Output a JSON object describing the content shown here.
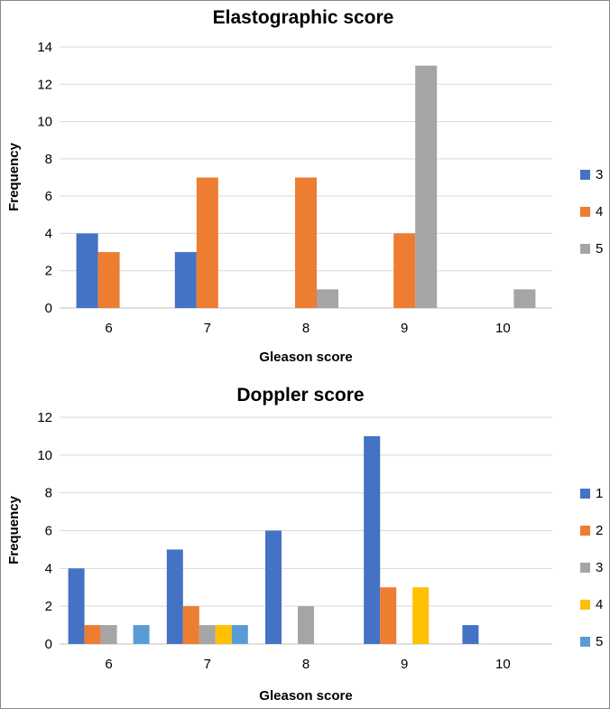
{
  "chart_data": [
    {
      "type": "bar",
      "title": "Elastographic score",
      "xlabel": "Gleason score",
      "ylabel": "Frequency",
      "categories": [
        "6",
        "7",
        "8",
        "9",
        "10"
      ],
      "ylim": [
        0,
        14
      ],
      "ytick_step": 2,
      "grid": true,
      "legend": "right",
      "series": [
        {
          "name": "3",
          "color": "#4472C4",
          "values": [
            4,
            3,
            0,
            0,
            0
          ]
        },
        {
          "name": "4",
          "color": "#ED7D31",
          "values": [
            3,
            7,
            7,
            4,
            0
          ]
        },
        {
          "name": "5",
          "color": "#A5A5A5",
          "values": [
            0,
            0,
            1,
            13,
            1
          ]
        }
      ]
    },
    {
      "type": "bar",
      "title": "Doppler score",
      "xlabel": "Gleason score",
      "ylabel": "Frequency",
      "categories": [
        "6",
        "7",
        "8",
        "9",
        "10"
      ],
      "ylim": [
        0,
        12
      ],
      "ytick_step": 2,
      "grid": true,
      "legend": "right",
      "series": [
        {
          "name": "1",
          "color": "#4472C4",
          "values": [
            4,
            5,
            6,
            11,
            1
          ]
        },
        {
          "name": "2",
          "color": "#ED7D31",
          "values": [
            1,
            2,
            0,
            3,
            0
          ]
        },
        {
          "name": "3",
          "color": "#A5A5A5",
          "values": [
            1,
            1,
            2,
            0,
            0
          ]
        },
        {
          "name": "4",
          "color": "#FFC000",
          "values": [
            0,
            1,
            0,
            3,
            0
          ]
        },
        {
          "name": "5",
          "color": "#5B9BD5",
          "values": [
            1,
            1,
            0,
            0,
            0
          ]
        }
      ]
    }
  ]
}
